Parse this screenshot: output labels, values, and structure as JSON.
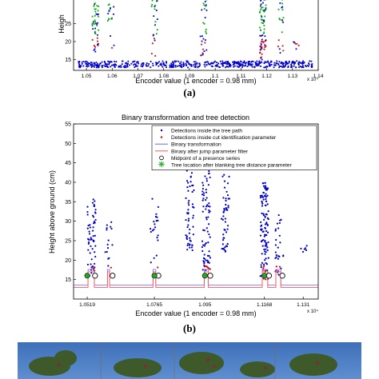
{
  "captions": {
    "a": "(a)",
    "b": "(b)"
  },
  "colors": {
    "tree_path": "#0000cc",
    "cut_parameter": "#dd0000",
    "jump_filter": "#00aa00",
    "binary": "#6666ff",
    "binary_filtered": "#ff5555",
    "midpoint": "#000000",
    "tree_location": "#22aa22"
  },
  "chart_data": [
    {
      "id": "a",
      "type": "scatter",
      "title": "",
      "xlabel": "Encoder value (1 encoder = 0.98 mm)",
      "ylabel": "Heigh",
      "x_exponent": "x 10⁴",
      "xlim": [
        1.045,
        1.14
      ],
      "ylim": [
        12,
        32
      ],
      "x_ticks": [
        1.05,
        1.06,
        1.07,
        1.08,
        1.09,
        1.1,
        1.11,
        1.12,
        1.13,
        1.14
      ],
      "x_tick_labels": [
        "1.05",
        "1.06",
        "1.07",
        "1.08",
        "1.09",
        "1.1",
        "1.11",
        "1.12",
        "1.13",
        "1.14"
      ],
      "y_ticks": [
        15,
        20,
        25
      ],
      "y_tick_labels": [
        "15",
        "20",
        "25"
      ],
      "grid": false,
      "clusters": [
        {
          "x": 1.0535,
          "ymin": 17,
          "ymax": 32,
          "n": 46
        },
        {
          "x": 1.0595,
          "ymin": 18,
          "ymax": 32,
          "n": 18
        },
        {
          "x": 1.0765,
          "ymin": 16,
          "ymax": 32,
          "n": 22
        },
        {
          "x": 1.0955,
          "ymin": 16,
          "ymax": 32,
          "n": 30
        },
        {
          "x": 1.1185,
          "ymin": 15,
          "ymax": 32,
          "n": 70
        },
        {
          "x": 1.1255,
          "ymin": 15,
          "ymax": 32,
          "n": 20
        },
        {
          "x": 1.1315,
          "ymin": 14,
          "ymax": 20,
          "n": 6
        }
      ],
      "ground_band": {
        "y_low": 12.8,
        "y_high": 14.6,
        "n": 520
      },
      "series": [
        {
          "name": "",
          "marker": "point",
          "color": "#0000cc"
        },
        {
          "name": "",
          "marker": "point",
          "color": "#dd0000"
        },
        {
          "name": "",
          "marker": "point",
          "color": "#00aa00"
        }
      ]
    },
    {
      "id": "b",
      "type": "scatter",
      "title": "Binary transformation and tree detection",
      "xlabel": "Encoder value (1 encoder = 0.98 mm)",
      "ylabel": "Height above ground (cm)",
      "x_exponent": "x 10⁴",
      "xlim": [
        1.0469,
        1.1365
      ],
      "ylim": [
        10,
        55
      ],
      "x_ticks": [
        1.0519,
        1.0765,
        1.095,
        1.1168,
        1.131
      ],
      "x_tick_labels": [
        "1.0519",
        "1.0765",
        "1.095",
        "1.1168",
        "1.131"
      ],
      "y_ticks": [
        15,
        20,
        25,
        30,
        35,
        40,
        45,
        50,
        55
      ],
      "y_tick_labels": [
        "15",
        "20",
        "25",
        "30",
        "35",
        "40",
        "45",
        "50",
        "55"
      ],
      "grid": false,
      "legend": {
        "placement": "top-right",
        "entries": [
          {
            "label": "Detections inside the tree path",
            "marker": "dot",
            "color": "#0000cc"
          },
          {
            "label": "Detections inside cut identification parameter",
            "marker": "dot",
            "color": "#dd0000"
          },
          {
            "label": "Binary transformation",
            "marker": "line",
            "color": "#6666ff"
          },
          {
            "label": "Binary after jump parameter filter",
            "marker": "line",
            "color": "#ff5555"
          },
          {
            "label": "Midpoint of a presence series",
            "marker": "circle",
            "color": "#000000"
          },
          {
            "label": "Tree location after blanking tree distance parameter",
            "marker": "star",
            "color": "#22aa22"
          }
        ]
      },
      "clusters": [
        {
          "x": 1.0535,
          "ymin": 16,
          "ymax": 36,
          "n": 60
        },
        {
          "x": 1.0598,
          "ymin": 18,
          "ymax": 31,
          "n": 16
        },
        {
          "x": 1.0765,
          "ymin": 15,
          "ymax": 36,
          "n": 22
        },
        {
          "x": 1.0895,
          "ymin": 22,
          "ymax": 46,
          "n": 60
        },
        {
          "x": 1.0955,
          "ymin": 15,
          "ymax": 45,
          "n": 80
        },
        {
          "x": 1.1025,
          "ymin": 22,
          "ymax": 42,
          "n": 50
        },
        {
          "x": 1.1168,
          "ymin": 15,
          "ymax": 40,
          "n": 110
        },
        {
          "x": 1.1222,
          "ymin": 16,
          "ymax": 32,
          "n": 30
        },
        {
          "x": 1.1315,
          "ymin": 19,
          "ymax": 24,
          "n": 6
        }
      ],
      "binary_pulses": [
        [
          1.0522,
          1.0545
        ],
        [
          1.0593,
          1.0601
        ],
        [
          1.076,
          1.077
        ],
        [
          1.0948,
          1.0962
        ],
        [
          1.116,
          1.118
        ],
        [
          1.121,
          1.1228
        ]
      ],
      "binary_base_y": 13,
      "binary_high_y": 17,
      "midpoints": [
        1.0533,
        1.0597,
        1.0765,
        1.0955,
        1.117,
        1.1219
      ],
      "midpoint_y": 16,
      "tree_locations": [
        1.0519,
        1.0765,
        1.095,
        1.1168
      ],
      "tree_location_y": 16
    }
  ]
}
